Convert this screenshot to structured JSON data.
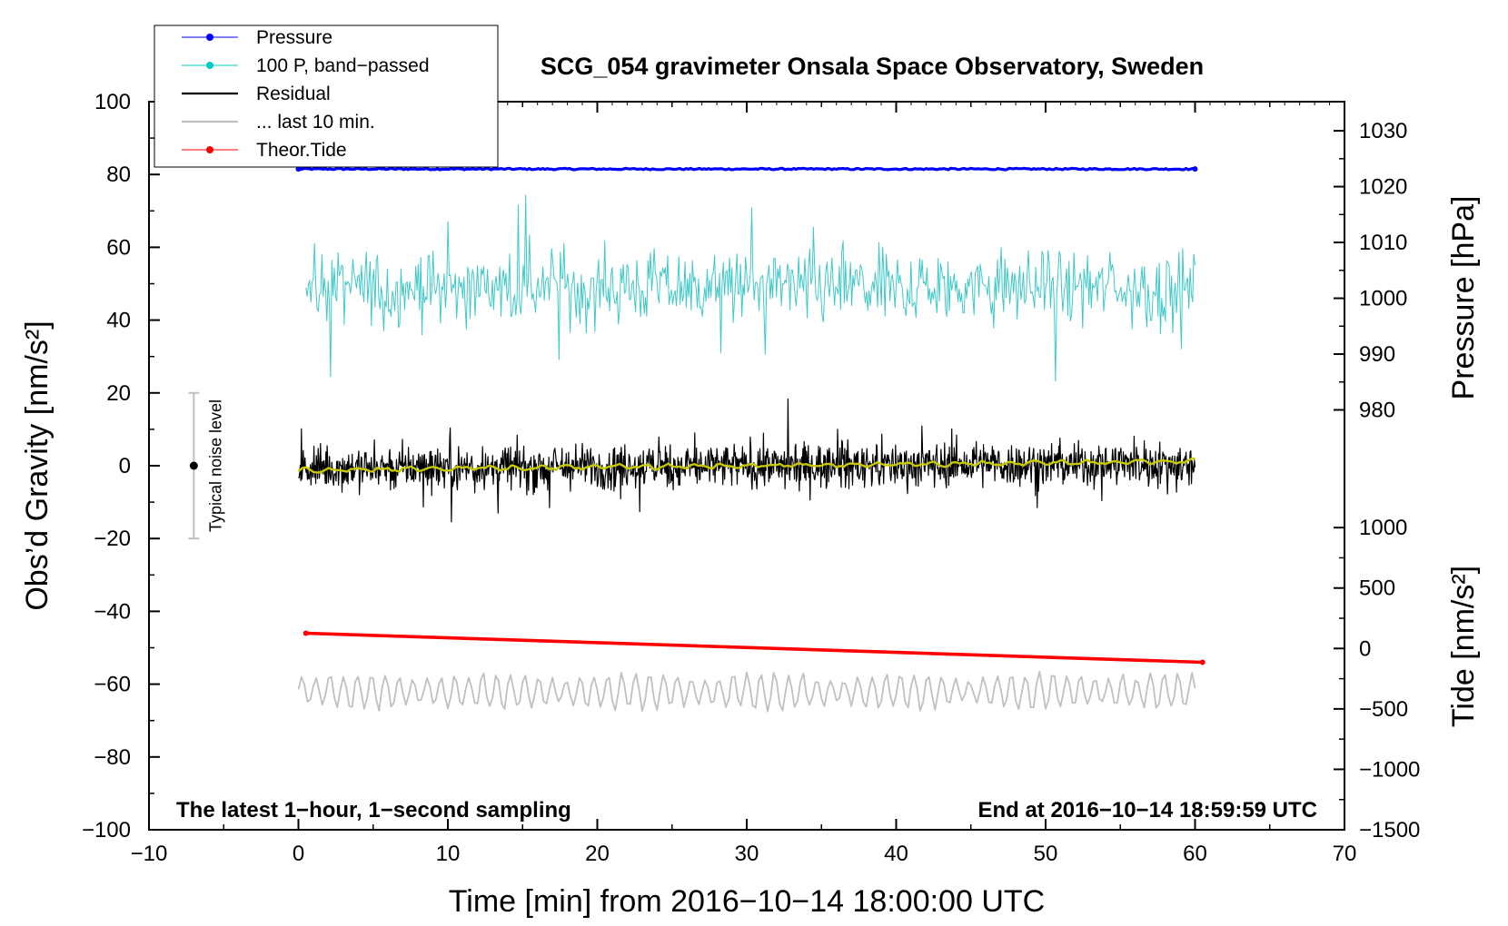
{
  "chart_data": {
    "type": "line",
    "title": "SCG_054 gravimeter Onsala Space Observatory, Sweden",
    "xlabel": "Time [min] from 2016−10−14 18:00:00 UTC",
    "ylabel_left": "Obs’d Gravity [nm/s²]",
    "ylabel_right_top": "Pressure [hPa]",
    "ylabel_right_bottom": "Tide [nm/s²]",
    "xlim": [
      -10,
      70
    ],
    "ylim": [
      -100,
      100
    ],
    "xticks": [
      -10,
      0,
      10,
      20,
      30,
      40,
      50,
      60,
      70
    ],
    "xtick_labels": [
      "−10",
      "0",
      "10",
      "20",
      "30",
      "40",
      "50",
      "60",
      "70"
    ],
    "yticks": [
      -100,
      -80,
      -60,
      -40,
      -20,
      0,
      20,
      40,
      60,
      80,
      100
    ],
    "ytick_labels": [
      "−100",
      "−80",
      "−60",
      "−40",
      "−20",
      "0",
      "20",
      "40",
      "60",
      "80",
      "100"
    ],
    "pressure_axis": {
      "ticks": [
        980,
        990,
        1000,
        1010,
        1020,
        1030
      ],
      "tick_labels": [
        "980",
        "990",
        "1000",
        "1010",
        "1020",
        "1030"
      ],
      "gravity_at": {
        "1000": 46,
        "1030": 92
      }
    },
    "tide_axis": {
      "ticks": [
        1000,
        500,
        0,
        -500,
        -1000,
        -1500
      ],
      "tick_labels": [
        "1000",
        "500",
        "0",
        "−500",
        "−1000",
        "−1500"
      ],
      "gravity_at": {
        "1000": -17,
        "-1500": -100
      }
    },
    "legend": [
      {
        "label": "Pressure",
        "color": "#0000ff",
        "marker": true
      },
      {
        "label": "100 P, band−passed",
        "color": "#00cccc",
        "marker": true
      },
      {
        "label": "Residual",
        "color": "#000000",
        "marker": false
      },
      {
        "label": "... last 10 min.",
        "color": "#c0c0c0",
        "marker": false
      },
      {
        "label": "Theor.Tide",
        "color": "#ff0000",
        "marker": true
      }
    ],
    "series": [
      {
        "name": "Pressure",
        "color": "#0000ff",
        "kind": "flat",
        "x_start": 0,
        "x_end": 60,
        "center": 81.5,
        "amplitude": 0.4
      },
      {
        "name": "100 P, band-passed",
        "color": "#40c8c8",
        "kind": "noise",
        "x_start": 0.5,
        "x_end": 60,
        "center": 49,
        "amplitude": 5,
        "points": 720
      },
      {
        "name": "Residual",
        "color": "#000000",
        "kind": "noise",
        "x_start": 0,
        "x_end": 60,
        "center": 0,
        "amplitude": 3,
        "points": 1500
      },
      {
        "name": "Residual smoothed",
        "color": "#c8c800",
        "kind": "smooth",
        "x_start": 0,
        "x_end": 60,
        "start": -1.2,
        "end": 1.2
      },
      {
        "name": "... last 10 min.",
        "color": "#c0c0c0",
        "kind": "wave",
        "x_start": 0,
        "x_end": 60,
        "center": -62,
        "amplitude": 4,
        "points": 300
      },
      {
        "name": "Theor.Tide",
        "color": "#ff0000",
        "kind": "linear",
        "x": [
          0.5,
          60.5
        ],
        "y": [
          -46,
          -54
        ]
      }
    ],
    "noise_level": {
      "label": "Typical noise level",
      "x": -7,
      "center": 0,
      "low": -20,
      "high": 20
    },
    "annotations": {
      "left": "The latest 1−hour, 1−second sampling",
      "right": "End at 2016−10−14 18:59:59 UTC"
    }
  }
}
